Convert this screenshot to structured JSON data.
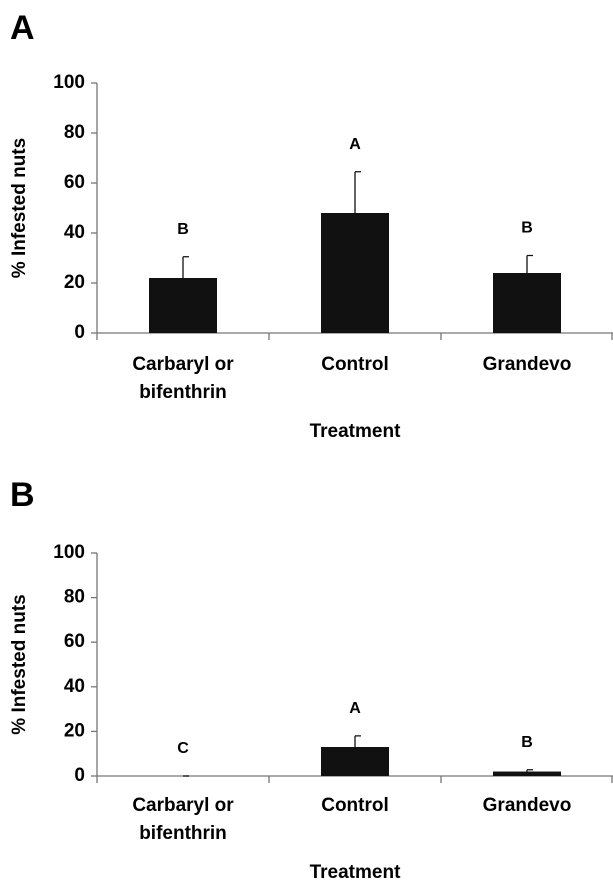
{
  "chart_data": [
    {
      "type": "bar",
      "panel_label": "A",
      "y_label": "% Infested nuts",
      "x_label": "Treatment",
      "categories": [
        "Carbaryl or bifenthrin",
        "Control",
        "Grandevo"
      ],
      "series": [
        {
          "color": "#111111",
          "values": [
            22,
            48,
            24
          ],
          "errors": [
            8.5,
            16.5,
            7
          ]
        }
      ],
      "letters": [
        "B",
        "A",
        "B"
      ],
      "ylim": [
        0,
        100
      ],
      "yticks": [
        0,
        20,
        40,
        60,
        80,
        100
      ]
    },
    {
      "type": "bar",
      "panel_label": "B",
      "y_label": "% Infested nuts",
      "x_label": "Treatment",
      "categories": [
        "Carbaryl or bifenthrin",
        "Control",
        "Grandevo"
      ],
      "series": [
        {
          "color": "#111111",
          "values": [
            0,
            13,
            2
          ],
          "errors": [
            0,
            5,
            0.8
          ]
        }
      ],
      "letters": [
        "C",
        "A",
        "B"
      ],
      "ylim": [
        0,
        100
      ],
      "yticks": [
        0,
        20,
        40,
        60,
        80,
        100
      ]
    }
  ]
}
